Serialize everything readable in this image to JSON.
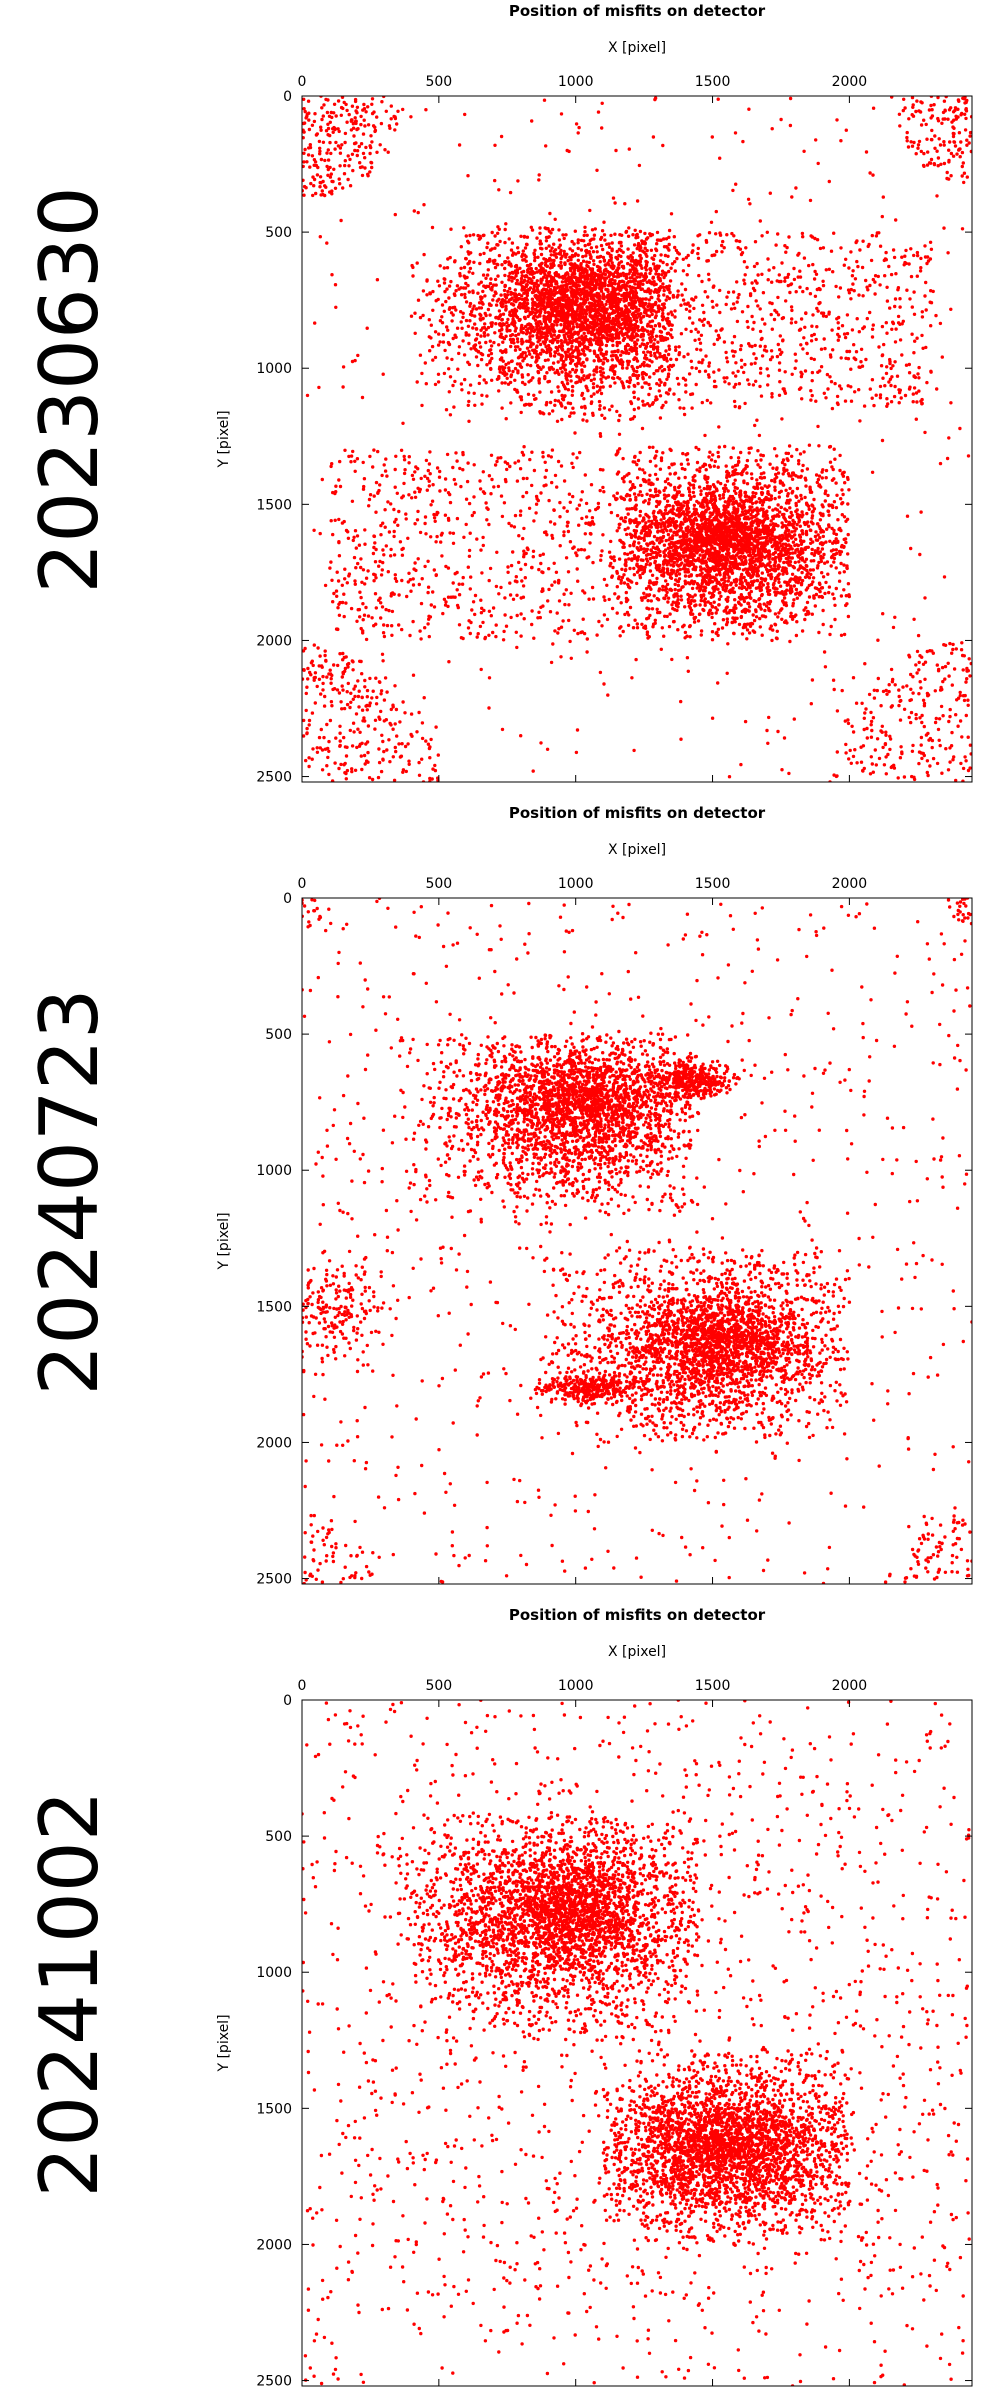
{
  "colors": {
    "point": "#ff0000",
    "axis": "#000000",
    "text": "#000000",
    "background": "#ffffff"
  },
  "chart_data": [
    {
      "type": "scatter",
      "date_label": "20230630",
      "title": "Position of misfits on detector",
      "xlabel": "X [pixel]",
      "ylabel": "Y [pixel]",
      "xlim": [
        0,
        2448
      ],
      "ylim": [
        2520,
        0
      ],
      "x_axis_position": "top",
      "y_axis_inverted": true,
      "x_ticks": [
        0,
        500,
        1000,
        1500,
        2000
      ],
      "y_ticks": [
        0,
        500,
        1000,
        1500,
        2000,
        2500
      ],
      "grid": false,
      "point_count": 9000,
      "series": [
        {
          "values": []
        }
      ],
      "clusters": [
        {
          "x_range": [
            300,
            1300
          ],
          "y_range": [
            550,
            1200
          ],
          "density": "high",
          "center": [
            1000,
            780
          ]
        },
        {
          "x_range": [
            1200,
            2000
          ],
          "y_range": [
            1300,
            1950
          ],
          "density": "high",
          "center": [
            1550,
            1650
          ]
        },
        {
          "x_range": [
            0,
            350
          ],
          "y_range": [
            0,
            350
          ],
          "density": "very high",
          "note": "top-left corner"
        },
        {
          "x_range": [
            2250,
            2448
          ],
          "y_range": [
            0,
            300
          ],
          "density": "very high",
          "note": "top-right corner"
        },
        {
          "x_range": [
            0,
            500
          ],
          "y_range": [
            2200,
            2520
          ],
          "density": "very high",
          "note": "bottom-left corner"
        },
        {
          "x_range": [
            1950,
            2448
          ],
          "y_range": [
            2200,
            2520
          ],
          "density": "very high",
          "note": "bottom-right corner"
        }
      ]
    },
    {
      "type": "scatter",
      "date_label": "20240723",
      "title": "Position of misfits on detector",
      "xlabel": "X [pixel]",
      "ylabel": "Y [pixel]",
      "xlim": [
        0,
        2448
      ],
      "ylim": [
        2520,
        0
      ],
      "x_axis_position": "top",
      "y_axis_inverted": true,
      "x_ticks": [
        0,
        500,
        1000,
        1500,
        2000
      ],
      "y_ticks": [
        0,
        500,
        1000,
        1500,
        2000,
        2500
      ],
      "grid": false,
      "point_count": 7500,
      "series": [
        {
          "values": []
        }
      ],
      "clusters": [
        {
          "x_range": [
            400,
            1500
          ],
          "y_range": [
            550,
            1150
          ],
          "density": "high",
          "center": [
            1000,
            760
          ]
        },
        {
          "x_range": [
            1300,
            1600
          ],
          "y_range": [
            620,
            720
          ],
          "density": "very high",
          "note": "streak near (1450, 670)"
        },
        {
          "x_range": [
            850,
            1950
          ],
          "y_range": [
            1300,
            1950
          ],
          "density": "high",
          "center": [
            1500,
            1650
          ]
        },
        {
          "x_range": [
            850,
            1200
          ],
          "y_range": [
            1750,
            1850
          ],
          "density": "very high",
          "note": "streak near (1050, 1800)"
        },
        {
          "x_range": [
            0,
            250
          ],
          "y_range": [
            1350,
            1650
          ],
          "density": "medium",
          "note": "left edge band"
        },
        {
          "x_range": [
            0,
            300
          ],
          "y_range": [
            2300,
            2520
          ],
          "density": "high",
          "note": "bottom-left corner"
        },
        {
          "x_range": [
            2200,
            2448
          ],
          "y_range": [
            2300,
            2520
          ],
          "density": "high",
          "note": "bottom-right corner"
        },
        {
          "x_range": [
            0,
            120
          ],
          "y_range": [
            0,
            100
          ],
          "density": "medium",
          "note": "top-left corner"
        },
        {
          "x_range": [
            2350,
            2448
          ],
          "y_range": [
            0,
            100
          ],
          "density": "medium",
          "note": "top-right corner"
        }
      ]
    },
    {
      "type": "scatter",
      "date_label": "20241002",
      "title": "Position of misfits on detector",
      "xlabel": "X [pixel]",
      "ylabel": "Y [pixel]",
      "xlim": [
        0,
        2448
      ],
      "ylim": [
        2520,
        0
      ],
      "x_axis_position": "top",
      "y_axis_inverted": true,
      "x_ticks": [
        0,
        500,
        1000,
        1500,
        2000
      ],
      "y_ticks": [
        0,
        500,
        1000,
        1500,
        2000,
        2500
      ],
      "grid": false,
      "point_count": 7000,
      "series": [
        {
          "values": []
        }
      ],
      "clusters": [
        {
          "x_range": [
            350,
            1400
          ],
          "y_range": [
            450,
            1200
          ],
          "density": "high",
          "center": [
            950,
            780
          ]
        },
        {
          "x_range": [
            1100,
            1950
          ],
          "y_range": [
            1300,
            1950
          ],
          "density": "high",
          "center": [
            1550,
            1650
          ]
        }
      ]
    }
  ]
}
